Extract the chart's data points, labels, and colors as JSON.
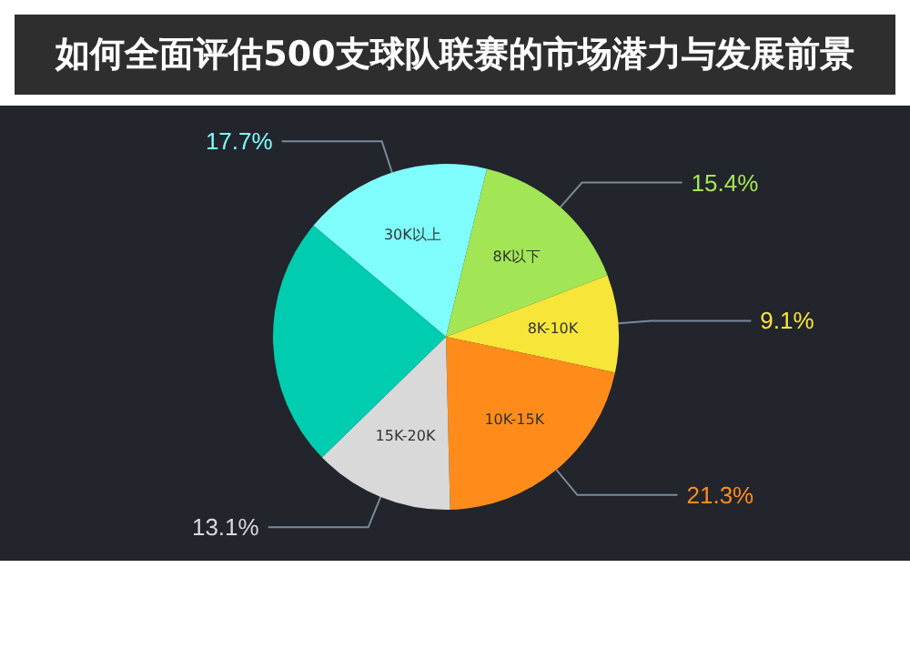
{
  "chart_data": {
    "type": "pie",
    "title": "如何全面评估500支球队联赛的市场潜力与发展前景",
    "categories": [
      "30K以上",
      "8K以下",
      "8K-10K",
      "10K-15K",
      "15K-20K",
      null
    ],
    "values": [
      17.7,
      15.4,
      9.1,
      21.3,
      13.1,
      23.4
    ],
    "value_labels": [
      "17.7%",
      "15.4%",
      "9.1%",
      "21.3%",
      "13.1%",
      null
    ],
    "colors": [
      "#7ffcfc",
      "#a3e655",
      "#f7e53a",
      "#ff8c1a",
      "#d9d9d9",
      "#00cdb0"
    ]
  }
}
